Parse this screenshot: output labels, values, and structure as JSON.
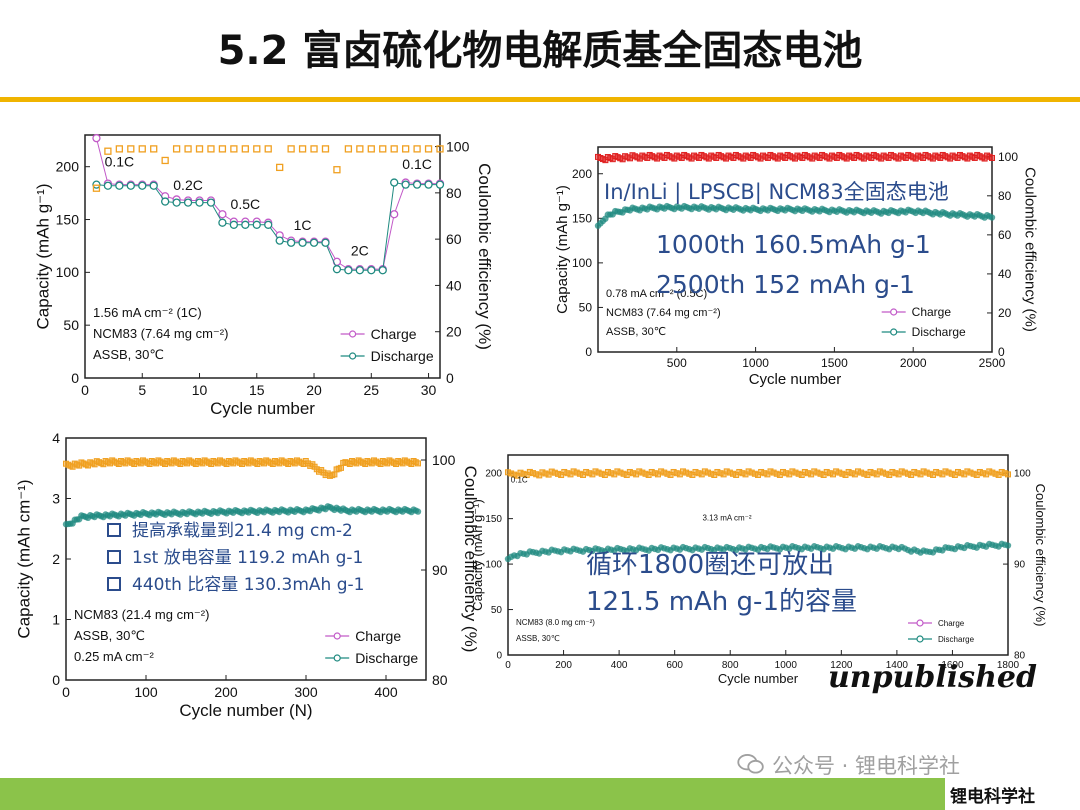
{
  "slide": {
    "title": "5.2 富卤硫化物电解质基全固态电池",
    "watermark": "公众号 · 锂电科学社",
    "brand": "锂电科学社",
    "stamp": "unpublished"
  },
  "colors": {
    "accent": "#f0b400",
    "band": "#8bc34a",
    "charge": "#c25ac8",
    "discharge": "#1f8a80",
    "ce": "#f0a020",
    "ce_red": "#e02020",
    "annot": "#2b4c8c"
  },
  "chart_data": [
    {
      "id": "rate",
      "type": "scatter",
      "xlabel": "Cycle number",
      "ylabel": "Capacity (mAh g⁻¹)",
      "y2label": "Coulombic efficiency (%)",
      "xlim": [
        0,
        31
      ],
      "ylim": [
        0,
        230
      ],
      "y2lim": [
        0,
        105
      ],
      "xticks": [
        0,
        5,
        10,
        15,
        20,
        25,
        30
      ],
      "yticks": [
        0,
        50,
        100,
        150,
        200
      ],
      "y2ticks": [
        0,
        20,
        40,
        60,
        80,
        100
      ],
      "series": [
        {
          "name": "Charge",
          "x": [
            1,
            2,
            3,
            4,
            5,
            6,
            7,
            8,
            9,
            10,
            11,
            12,
            13,
            14,
            15,
            16,
            17,
            18,
            19,
            20,
            21,
            22,
            23,
            24,
            25,
            26,
            27,
            28,
            29,
            30,
            31
          ],
          "values": [
            227,
            184,
            183,
            183,
            183,
            183,
            172,
            169,
            168,
            168,
            168,
            155,
            148,
            148,
            148,
            147,
            135,
            130,
            129,
            129,
            129,
            110,
            103,
            103,
            103,
            103,
            155,
            185,
            184,
            184,
            184
          ]
        },
        {
          "name": "Discharge",
          "x": [
            1,
            2,
            3,
            4,
            5,
            6,
            7,
            8,
            9,
            10,
            11,
            12,
            13,
            14,
            15,
            16,
            17,
            18,
            19,
            20,
            21,
            22,
            23,
            24,
            25,
            26,
            27,
            28,
            29,
            30,
            31
          ],
          "values": [
            183,
            182,
            182,
            182,
            182,
            182,
            167,
            166,
            166,
            166,
            166,
            147,
            145,
            145,
            145,
            145,
            130,
            128,
            128,
            128,
            128,
            103,
            102,
            102,
            102,
            102,
            185,
            183,
            183,
            183,
            183
          ]
        },
        {
          "name": "CE",
          "x": [
            1,
            2,
            3,
            4,
            5,
            6,
            7,
            8,
            9,
            10,
            11,
            12,
            13,
            14,
            15,
            16,
            17,
            18,
            19,
            20,
            21,
            22,
            23,
            24,
            25,
            26,
            27,
            28,
            29,
            30,
            31
          ],
          "values": [
            82,
            98,
            99,
            99,
            99,
            99,
            94,
            99,
            99,
            99,
            99,
            99,
            99,
            99,
            99,
            99,
            91,
            99,
            99,
            99,
            99,
            90,
            99,
            99,
            99,
            99,
            99,
            99,
            99,
            99,
            99
          ]
        }
      ],
      "labels": [
        "0.1C",
        "0.2C",
        "0.5C",
        "1C",
        "2C",
        "0.1C"
      ],
      "label_pos": [
        [
          3,
          200
        ],
        [
          9,
          178
        ],
        [
          14,
          160
        ],
        [
          19,
          140
        ],
        [
          24,
          116
        ],
        [
          29,
          198
        ]
      ],
      "notes": [
        "1.56 mA cm⁻² (1C)",
        "NCM83 (7.64 mg cm⁻²)",
        "ASSB, 30℃"
      ],
      "legend": "bottom-right"
    },
    {
      "id": "long1",
      "type": "scatter",
      "xlabel": "Cycle number",
      "ylabel": "Capacity (mAh g⁻¹)",
      "y2label": "Coulombic efficiency (%)",
      "xlim": [
        0,
        2500
      ],
      "ylim": [
        0,
        230
      ],
      "y2lim": [
        0,
        105
      ],
      "xticks": [
        500,
        1000,
        1500,
        2000,
        2500
      ],
      "yticks": [
        0,
        50,
        100,
        150,
        200
      ],
      "y2ticks": [
        0,
        20,
        40,
        60,
        80,
        100
      ],
      "series": [
        {
          "name": "Discharge",
          "x": [
            0,
            50,
            100,
            200,
            400,
            600,
            800,
            1000,
            1200,
            1400,
            1600,
            1800,
            2000,
            2200,
            2400,
            2500
          ],
          "values": [
            140,
            152,
            156,
            160,
            162,
            162,
            161,
            160,
            160,
            159,
            158,
            157,
            158,
            155,
            153,
            152
          ]
        },
        {
          "name": "CE",
          "x": [
            0,
            250,
            500,
            750,
            1000,
            1250,
            1500,
            1750,
            2000,
            2250,
            2500
          ],
          "values": [
            99,
            100,
            100,
            100,
            100,
            100,
            100,
            100,
            100,
            100,
            100
          ]
        }
      ],
      "annotations": [
        "In/InLi | LPSCB| NCM83全固态电池",
        "1000th  160.5mAh g-1",
        "2500th  152 mAh g-1"
      ],
      "notes": [
        "0.78 mA cm⁻² (0.5C)",
        "NCM83 (7.64 mg cm⁻²)",
        "ASSB, 30℃"
      ],
      "legend": "bottom-right"
    },
    {
      "id": "highload",
      "type": "scatter",
      "xlabel": "Cycle number (N)",
      "ylabel": "Capacity (mAh cm⁻¹)",
      "y2label": "Coulombic efficiency (%)",
      "xlim": [
        0,
        450
      ],
      "ylim": [
        0,
        4
      ],
      "y2lim": [
        80,
        102
      ],
      "xticks": [
        0,
        100,
        200,
        300,
        400
      ],
      "yticks": [
        0,
        1,
        2,
        3,
        4
      ],
      "y2ticks": [
        80,
        90,
        100
      ],
      "series": [
        {
          "name": "Discharge",
          "x": [
            0,
            20,
            50,
            100,
            150,
            200,
            250,
            300,
            330,
            350,
            400,
            440
          ],
          "values": [
            2.55,
            2.7,
            2.72,
            2.75,
            2.76,
            2.78,
            2.79,
            2.8,
            2.85,
            2.8,
            2.8,
            2.8
          ]
        },
        {
          "name": "CE",
          "x": [
            0,
            50,
            100,
            150,
            200,
            250,
            300,
            330,
            350,
            400,
            440
          ],
          "values": [
            99.5,
            99.8,
            99.8,
            99.8,
            99.8,
            99.8,
            99.8,
            98.5,
            99.8,
            99.8,
            99.8
          ]
        }
      ],
      "annotations": [
        "提高承载量到21.4 mg cm-2",
        "1st 放电容量 119.2 mAh g-1",
        "440th 比容量 130.3mAh g-1"
      ],
      "notes": [
        "NCM83 (21.4 mg cm⁻²)",
        "ASSB, 30℃",
        "0.25 mA cm⁻²"
      ],
      "legend": "bottom-right"
    },
    {
      "id": "long2",
      "type": "scatter",
      "xlabel": "Cycle number",
      "ylabel": "Capacity (mAh g⁻¹)",
      "y2label": "Coulombic efficiency (%)",
      "xlim": [
        0,
        1800
      ],
      "ylim": [
        0,
        220
      ],
      "y2lim": [
        80,
        102
      ],
      "xticks": [
        0,
        200,
        400,
        600,
        800,
        1000,
        1200,
        1400,
        1600,
        1800
      ],
      "yticks": [
        0,
        50,
        100,
        150,
        200
      ],
      "y2ticks": [
        80,
        90,
        100
      ],
      "series": [
        {
          "name": "Discharge",
          "x": [
            0,
            20,
            100,
            200,
            400,
            600,
            800,
            1000,
            1200,
            1400,
            1500,
            1600,
            1700,
            1800
          ],
          "values": [
            104,
            110,
            113,
            115,
            116,
            117,
            117,
            118,
            118,
            118,
            113,
            118,
            120,
            121.5
          ]
        },
        {
          "name": "CE",
          "x": [
            0,
            200,
            400,
            600,
            800,
            1000,
            1200,
            1400,
            1600,
            1800
          ],
          "values": [
            99.9,
            100,
            100,
            100,
            100,
            100,
            100,
            100,
            100,
            100
          ]
        }
      ],
      "annotations": [
        "循环1800圈还可放出",
        "121.5 mAh g-1的容量"
      ],
      "labels": [
        "0.1C",
        "3.13 mA cm⁻²"
      ],
      "notes": [
        "NCM83 (8.0 mg cm⁻²)",
        "ASSB, 30℃"
      ],
      "legend": "bottom-right"
    }
  ]
}
